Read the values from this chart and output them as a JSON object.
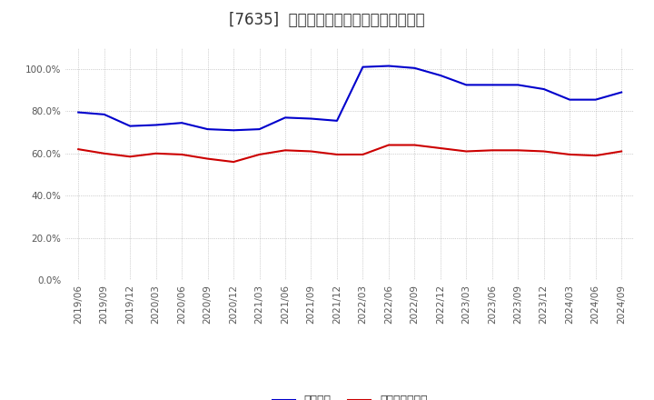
{
  "title": "[7635]  固定比率、固定長期適合率の推移",
  "x_labels": [
    "2019/06",
    "2019/09",
    "2019/12",
    "2020/03",
    "2020/06",
    "2020/09",
    "2020/12",
    "2021/03",
    "2021/06",
    "2021/09",
    "2021/12",
    "2022/03",
    "2022/06",
    "2022/09",
    "2022/12",
    "2023/03",
    "2023/06",
    "2023/09",
    "2023/12",
    "2024/03",
    "2024/06",
    "2024/09"
  ],
  "fixed_ratio": [
    79.5,
    78.5,
    73.0,
    73.5,
    74.5,
    71.5,
    71.0,
    71.5,
    77.0,
    76.5,
    75.5,
    101.0,
    101.5,
    100.5,
    97.0,
    92.5,
    92.5,
    92.5,
    90.5,
    85.5,
    85.5,
    89.0
  ],
  "fixed_long_ratio": [
    62.0,
    60.0,
    58.5,
    60.0,
    59.5,
    57.5,
    56.0,
    59.5,
    61.5,
    61.0,
    59.5,
    59.5,
    64.0,
    64.0,
    62.5,
    61.0,
    61.5,
    61.5,
    61.0,
    59.5,
    59.0,
    61.0
  ],
  "fixed_ratio_color": "#0000cc",
  "fixed_long_ratio_color": "#cc0000",
  "background_color": "#ffffff",
  "grid_color": "#aaaaaa",
  "ylim": [
    0.0,
    110.0
  ],
  "yticks": [
    0.0,
    20.0,
    40.0,
    60.0,
    80.0,
    100.0
  ],
  "legend_fixed": "固定比率",
  "legend_fixed_long": "固定長期適合率",
  "title_fontsize": 12,
  "axis_fontsize": 7.5,
  "legend_fontsize": 9
}
